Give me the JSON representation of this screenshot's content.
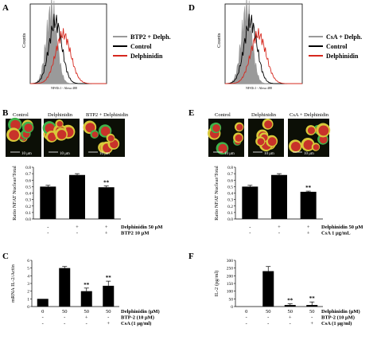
{
  "panels": {
    "A": {
      "letter": "A",
      "ylabel": "Counts",
      "xlabel": "NFATc1 - Alexa 488",
      "legend": [
        "BTP2 + Delph.",
        "Control",
        "Delphinidin"
      ],
      "colors": {
        "treated": "#9a9a9a",
        "control": "#000000",
        "delph": "#d6281e"
      }
    },
    "D": {
      "letter": "D",
      "ylabel": "Counts",
      "xlabel": "NFATc1 - Alexa 488",
      "legend": [
        "CsA + Delph.",
        "Control",
        "Delphinidin"
      ],
      "colors": {
        "treated": "#9a9a9a",
        "control": "#000000",
        "delph": "#d6281e"
      }
    },
    "B": {
      "letter": "B",
      "image_labels": [
        "Control",
        "Delphinidin",
        "BTP2 + Delphinidin"
      ],
      "scale_bar": "10 μm"
    },
    "E": {
      "letter": "E",
      "image_labels": [
        "Control",
        "Delphinidin",
        "CsA + Delphinidin"
      ],
      "scale_bar": "10 μm"
    },
    "C": {
      "letter": "C"
    },
    "F": {
      "letter": "F"
    }
  },
  "chart_data": [
    {
      "id": "B-bar",
      "type": "bar",
      "ylabel": "Ratio NFAT Nuclear/Total",
      "yticks": [
        "0.0",
        "0.1",
        "0.2",
        "0.3",
        "0.4",
        "0.5",
        "0.6",
        "0.7",
        "0.8"
      ],
      "ylim": [
        0,
        0.8
      ],
      "values": [
        0.5,
        0.68,
        0.49
      ],
      "errors": [
        0.02,
        0.02,
        0.02
      ],
      "significance": [
        "",
        "",
        "**"
      ],
      "conditions": [
        {
          "label": "Delphinidin 50 μM",
          "marks": [
            "-",
            "+",
            "+"
          ]
        },
        {
          "label": "BTP2 10 μM",
          "marks": [
            "-",
            "-",
            "+"
          ]
        }
      ]
    },
    {
      "id": "E-bar",
      "type": "bar",
      "ylabel": "Ratio NFAT Nuclear/Total",
      "yticks": [
        "0.0",
        "0.1",
        "0.2",
        "0.3",
        "0.4",
        "0.5",
        "0.6",
        "0.7",
        "0.8"
      ],
      "ylim": [
        0,
        0.8
      ],
      "values": [
        0.5,
        0.68,
        0.42
      ],
      "errors": [
        0.02,
        0.02,
        0.01
      ],
      "significance": [
        "",
        "",
        "**"
      ],
      "conditions": [
        {
          "label": "Delphinidin 50 μM",
          "marks": [
            "-",
            "+",
            "+"
          ]
        },
        {
          "label": "CsA 1 μg/mL",
          "marks": [
            "-",
            "-",
            "+"
          ]
        }
      ]
    },
    {
      "id": "C-bar",
      "type": "bar",
      "ylabel": "mRNA IL-2/Actin",
      "yticks": [
        "0",
        "1",
        "2",
        "3",
        "4",
        "5",
        "6"
      ],
      "ylim": [
        0,
        6
      ],
      "values": [
        1.0,
        5.0,
        2.0,
        2.7
      ],
      "errors": [
        0.0,
        0.2,
        0.4,
        0.6
      ],
      "significance": [
        "",
        "",
        "**",
        "**"
      ],
      "conditions": [
        {
          "label": "Delphinidin (μM)",
          "marks": [
            "0",
            "50",
            "50",
            "50"
          ]
        },
        {
          "label": "BTP-2 (10 μM)",
          "marks": [
            "-",
            "-",
            "+",
            "-"
          ]
        },
        {
          "label": "CsA (1 μg/ml)",
          "marks": [
            "-",
            "-",
            "-",
            "+"
          ]
        }
      ]
    },
    {
      "id": "F-bar",
      "type": "bar",
      "ylabel": "IL-2 (pg/ml)",
      "yticks": [
        "0",
        "50",
        "100",
        "150",
        "200",
        "250",
        "300"
      ],
      "ylim": [
        0,
        300
      ],
      "values": [
        0,
        230,
        10,
        10
      ],
      "errors": [
        0,
        30,
        8,
        20
      ],
      "significance": [
        "",
        "",
        "**",
        "**"
      ],
      "conditions": [
        {
          "label": "Delphinidin (μM)",
          "marks": [
            "0",
            "50",
            "50",
            "50"
          ]
        },
        {
          "label": "BTP-2 (10 μM)",
          "marks": [
            "-",
            "-",
            "+",
            "-"
          ]
        },
        {
          "label": "CsA (1 μg/ml)",
          "marks": [
            "-",
            "-",
            "-",
            "+"
          ]
        }
      ]
    }
  ]
}
